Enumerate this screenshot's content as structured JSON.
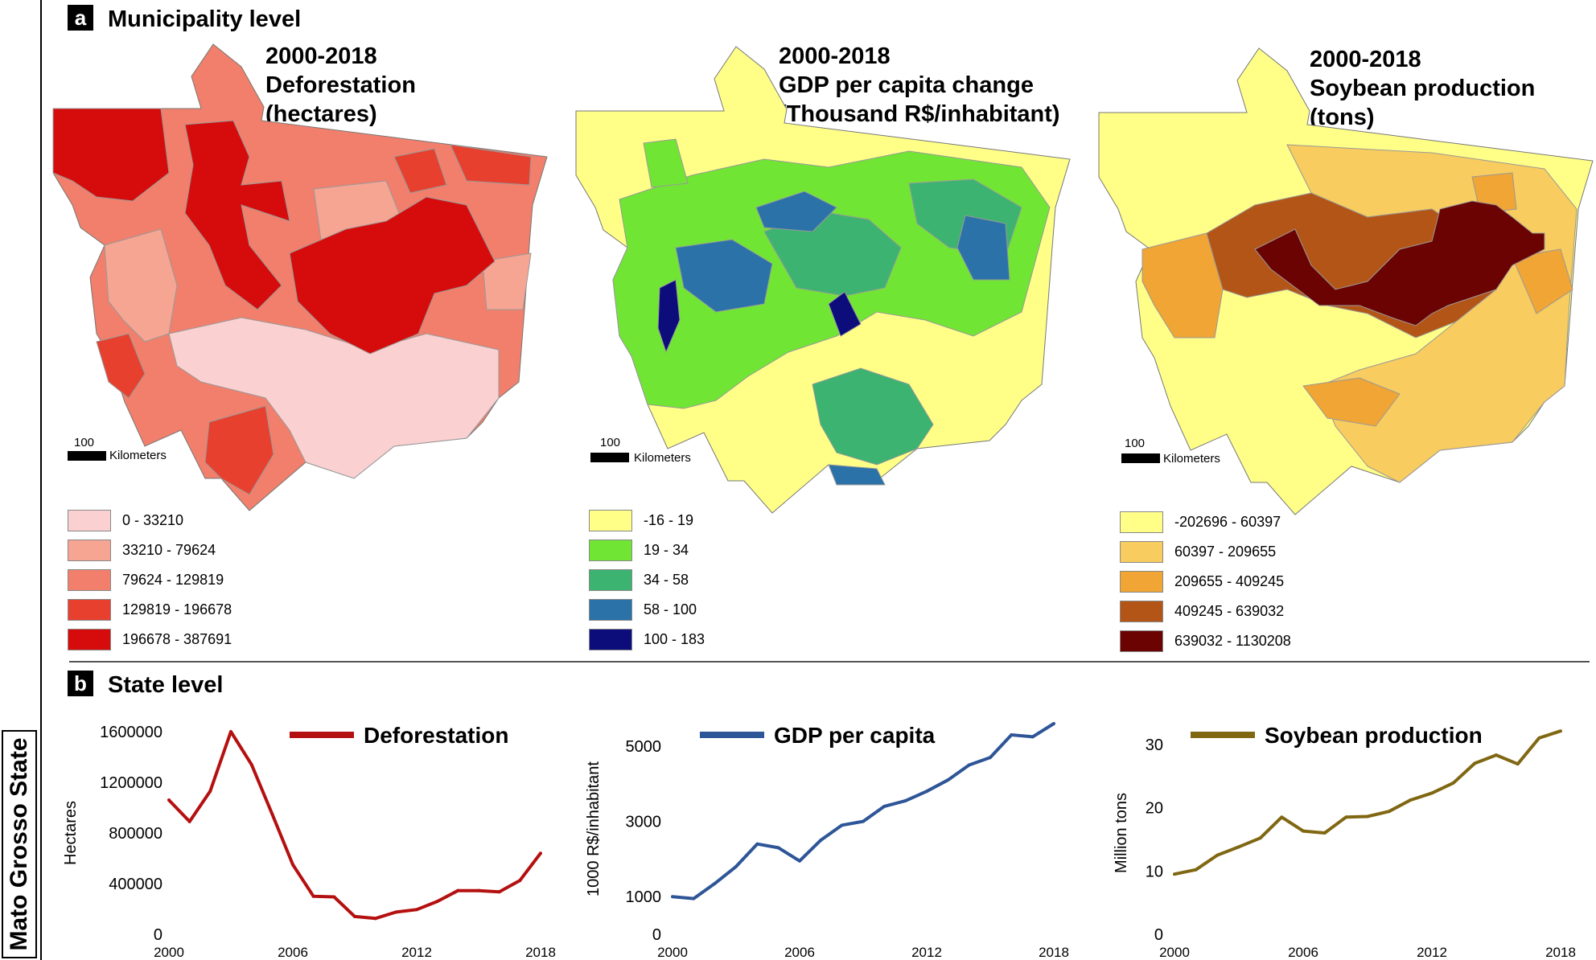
{
  "side_label": "Mato Grosso State",
  "section_a": {
    "badge": "a",
    "title": "Municipality level"
  },
  "section_b": {
    "badge": "b",
    "title": "State level"
  },
  "maps": [
    {
      "title": [
        "2000-2018",
        "Deforestation",
        "(hectares)"
      ],
      "scale": {
        "value": "100",
        "unit": "Kilometers"
      },
      "legend": [
        {
          "label": "0 - 33210",
          "color": "#fbd0d0"
        },
        {
          "label": "33210 - 79624",
          "color": "#f7a593"
        },
        {
          "label": "79624 - 129819",
          "color": "#f17f6b"
        },
        {
          "label": "129819 - 196678",
          "color": "#e7402f"
        },
        {
          "label": "196678 - 387691",
          "color": "#d60c0c"
        }
      ]
    },
    {
      "title": [
        "2000-2018",
        "GDP per capita change",
        "(Thousand R$/inhabitant)"
      ],
      "scale": {
        "value": "100",
        "unit": "Kilometers"
      },
      "legend": [
        {
          "label": "-16 - 19",
          "color": "#ffff88"
        },
        {
          "label": "19 - 34",
          "color": "#71e534"
        },
        {
          "label": "34 - 58",
          "color": "#3cb371"
        },
        {
          "label": "58 - 100",
          "color": "#2a72a8"
        },
        {
          "label": "100 - 183",
          "color": "#0c0c7a"
        }
      ]
    },
    {
      "title": [
        "2000-2018",
        "Soybean production",
        "(tons)"
      ],
      "scale": {
        "value": "100",
        "unit": "Kilometers"
      },
      "legend": [
        {
          "label": "-202696 - 60397",
          "color": "#ffff88"
        },
        {
          "label": "60397 - 209655",
          "color": "#f8cc5e"
        },
        {
          "label": "209655 - 409245",
          "color": "#f0a535"
        },
        {
          "label": "409245 - 639032",
          "color": "#b35516"
        },
        {
          "label": "639032 - 1130208",
          "color": "#6b0303"
        }
      ]
    }
  ],
  "chart_data": [
    {
      "type": "line",
      "legend": "Deforestation",
      "color": "#b51010",
      "ylabel": "Hectares",
      "xlabel": "",
      "ylim": [
        0,
        1600000
      ],
      "yticks": [
        0,
        400000,
        800000,
        1200000,
        1600000
      ],
      "ytick_labels": [
        "0",
        "400000",
        "800000",
        "1200000",
        "1600000"
      ],
      "xlim": [
        2000,
        2018
      ],
      "xticks": [
        "2000",
        "2006",
        "2012",
        "2018"
      ],
      "x": [
        2000,
        2001,
        2002,
        2003,
        2004,
        2005,
        2006,
        2007,
        2008,
        2009,
        2010,
        2011,
        2012,
        2013,
        2014,
        2015,
        2016,
        2017,
        2018
      ],
      "values": [
        1060000,
        890000,
        1130000,
        1600000,
        1340000,
        950000,
        550000,
        300000,
        295000,
        140000,
        125000,
        175000,
        195000,
        260000,
        345000,
        345000,
        335000,
        425000,
        640000
      ]
    },
    {
      "type": "line",
      "legend": "GDP per capita",
      "color": "#2e5597",
      "ylabel": "1000 R$/inhabitant",
      "xlabel": "",
      "ylim": [
        0,
        5600
      ],
      "yticks": [
        0,
        1000,
        3000,
        5000
      ],
      "ytick_labels": [
        "0",
        "1000",
        "3000",
        "5000"
      ],
      "xlim": [
        2000,
        2018
      ],
      "xticks": [
        "2000",
        "2006",
        "2012",
        "2018"
      ],
      "x": [
        2000,
        2001,
        2002,
        2003,
        2004,
        2005,
        2006,
        2007,
        2008,
        2009,
        2010,
        2011,
        2012,
        2013,
        2014,
        2015,
        2016,
        2017,
        2018
      ],
      "values": [
        1000,
        950,
        1350,
        1800,
        2400,
        2300,
        1950,
        2500,
        2900,
        3000,
        3400,
        3550,
        3800,
        4100,
        4500,
        4700,
        5300,
        5250,
        5600
      ]
    },
    {
      "type": "line",
      "legend": "Soybean production",
      "color": "#806712",
      "ylabel": "Million tons",
      "xlabel": "",
      "ylim": [
        0,
        32
      ],
      "yticks": [
        0,
        10,
        20,
        30
      ],
      "ytick_labels": [
        "0",
        "10",
        "20",
        "30"
      ],
      "xlim": [
        2000,
        2018
      ],
      "xticks": [
        "2000",
        "2006",
        "2012",
        "2018"
      ],
      "x": [
        2000,
        2001,
        2002,
        2003,
        2004,
        2005,
        2006,
        2007,
        2008,
        2009,
        2010,
        2011,
        2012,
        2013,
        2014,
        2015,
        2016,
        2017,
        2018
      ],
      "values": [
        9.5,
        10.2,
        12.5,
        13.8,
        15.2,
        18.5,
        16.3,
        16.0,
        18.5,
        18.6,
        19.4,
        21.2,
        22.3,
        23.9,
        27.0,
        28.3,
        26.9,
        31.0,
        32.1
      ]
    }
  ]
}
